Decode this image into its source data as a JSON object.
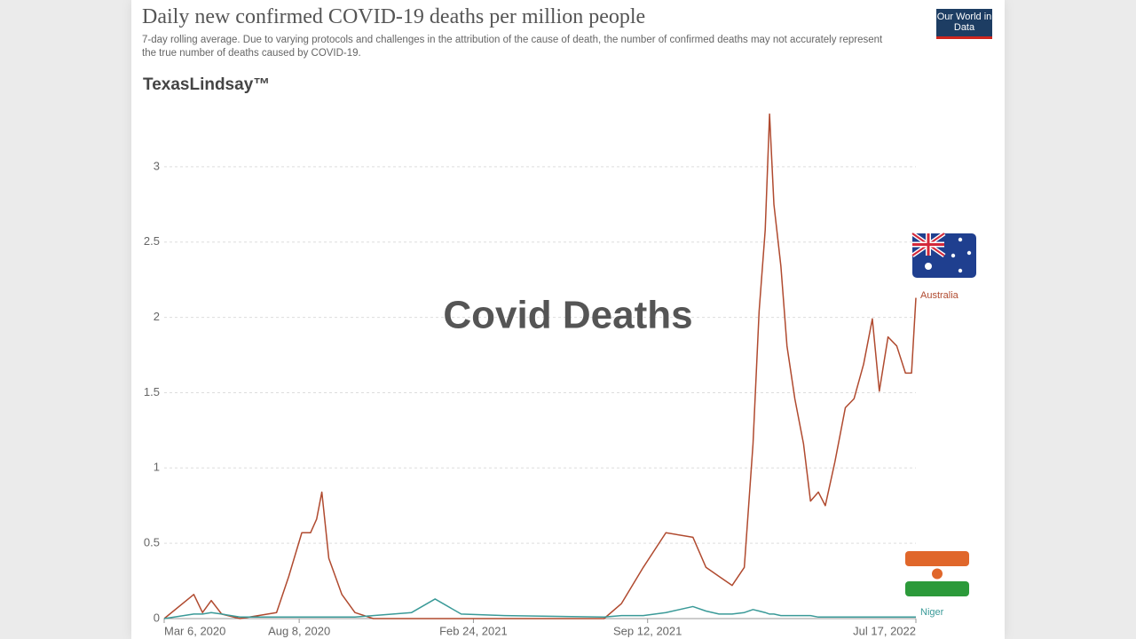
{
  "chart_data": {
    "type": "line",
    "title": "Daily new confirmed COVID-19 deaths per million people",
    "subtitle": "7-day rolling average. Due to varying protocols and challenges in the attribution of the cause of death, the number of confirmed deaths may not accurately represent the true number of deaths caused by COVID-19.",
    "source_logo": "Our World in Data",
    "watermark": "TexasLindsay™",
    "annotation": "Covid Deaths",
    "x": [
      "2020-03-06",
      "2020-04-09",
      "2020-04-19",
      "2020-04-29",
      "2020-05-11",
      "2020-06-01",
      "2020-07-13",
      "2020-07-27",
      "2020-08-11",
      "2020-08-21",
      "2020-08-28",
      "2020-09-03",
      "2020-09-11",
      "2020-09-26",
      "2020-10-11",
      "2020-11-01",
      "2020-12-15",
      "2021-01-11",
      "2021-02-10",
      "2021-04-01",
      "2021-07-24",
      "2021-08-13",
      "2021-09-07",
      "2021-10-03",
      "2021-11-03",
      "2021-11-18",
      "2021-12-03",
      "2021-12-18",
      "2022-01-01",
      "2022-01-11",
      "2022-01-18",
      "2022-01-25",
      "2022-01-30",
      "2022-02-04",
      "2022-02-12",
      "2022-02-19",
      "2022-02-28",
      "2022-03-10",
      "2022-03-18",
      "2022-03-27",
      "2022-04-04",
      "2022-04-15",
      "2022-04-27",
      "2022-05-07",
      "2022-05-18",
      "2022-05-28",
      "2022-06-05",
      "2022-06-15",
      "2022-06-25",
      "2022-07-05",
      "2022-07-12",
      "2022-07-17"
    ],
    "series": [
      {
        "name": "Australia",
        "color": "#b04a2f",
        "values": [
          0,
          0.16,
          0.04,
          0.12,
          0.03,
          0,
          0.04,
          0.28,
          0.57,
          0.57,
          0.66,
          0.84,
          0.4,
          0.16,
          0.04,
          0,
          0,
          0,
          0,
          0,
          0,
          0.1,
          0.34,
          0.57,
          0.54,
          0.34,
          0.28,
          0.22,
          0.34,
          1.16,
          2.04,
          2.58,
          3.35,
          2.75,
          2.34,
          1.81,
          1.46,
          1.16,
          0.78,
          0.84,
          0.75,
          1.04,
          1.4,
          1.46,
          1.69,
          1.99,
          1.51,
          1.87,
          1.81,
          1.63,
          1.63,
          2.13
        ]
      },
      {
        "name": "Niger",
        "color": "#3a9a98",
        "values": [
          0,
          0.03,
          0.03,
          0.04,
          0.03,
          0.01,
          0.01,
          0.01,
          0.01,
          0.01,
          0.01,
          0.01,
          0.01,
          0.01,
          0.01,
          0.02,
          0.04,
          0.13,
          0.03,
          0.02,
          0.01,
          0.02,
          0.02,
          0.04,
          0.08,
          0.05,
          0.03,
          0.03,
          0.04,
          0.06,
          0.05,
          0.04,
          0.03,
          0.03,
          0.02,
          0.02,
          0.02,
          0.02,
          0.02,
          0.01,
          0.01,
          0.01,
          0.01,
          0.01,
          0.01,
          0.01,
          0.01,
          0.01,
          0.01,
          0.01,
          0.01,
          0.01
        ]
      }
    ],
    "xlim": [
      "2020-03-06",
      "2022-07-17"
    ],
    "xticks": [
      {
        "value": "2020-03-06",
        "label": "Mar 6, 2020"
      },
      {
        "value": "2020-08-08",
        "label": "Aug 8, 2020"
      },
      {
        "value": "2021-02-24",
        "label": "Feb 24, 2021"
      },
      {
        "value": "2021-09-12",
        "label": "Sep 12, 2021"
      },
      {
        "value": "2022-07-17",
        "label": "Jul 17, 2022"
      }
    ],
    "ylim": [
      0,
      3.4
    ],
    "yticks": [
      0,
      0.5,
      1,
      1.5,
      2,
      2.5,
      3
    ],
    "grid": true
  }
}
